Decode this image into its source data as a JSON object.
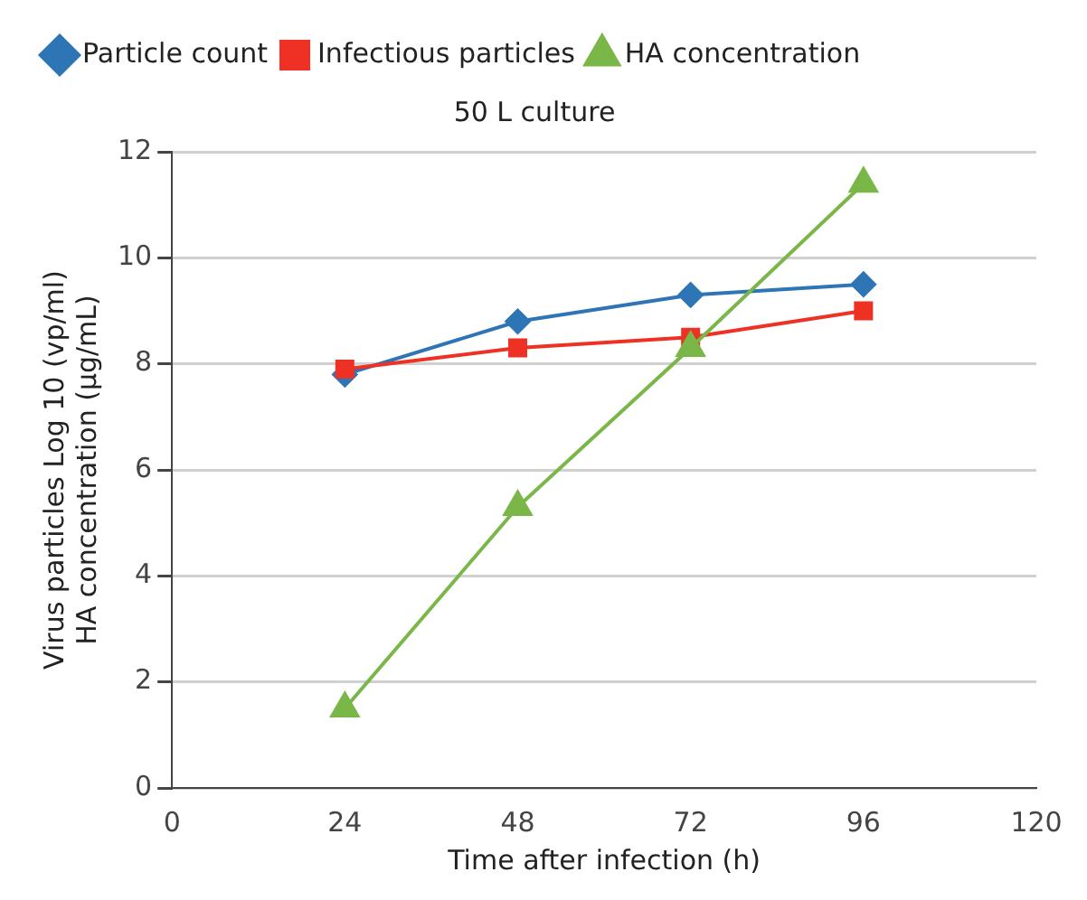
{
  "chart_data": {
    "type": "line",
    "title": "50 L culture",
    "xlabel": "Time after infection (h)",
    "ylabel": [
      "Virus particles Log 10 (vp/ml)",
      "HA concentration (µg/mL)"
    ],
    "x": [
      24,
      48,
      72,
      96
    ],
    "series": [
      {
        "name": "Particle count",
        "color": "#2e75b6",
        "marker": "diamond",
        "values": [
          7.8,
          8.8,
          9.3,
          9.5
        ]
      },
      {
        "name": "Infectious particles",
        "color": "#ee3124",
        "marker": "square",
        "values": [
          7.9,
          8.3,
          8.5,
          9.0
        ]
      },
      {
        "name": "HA concentration",
        "color": "#7ab648",
        "marker": "triangle",
        "values": [
          1.5,
          5.3,
          8.3,
          11.4
        ]
      }
    ],
    "xlim": [
      0,
      120
    ],
    "xticks": [
      0,
      24,
      48,
      72,
      96,
      120
    ],
    "ylim": [
      0,
      12
    ],
    "yticks": [
      0,
      2,
      4,
      6,
      8,
      10,
      12
    ],
    "grid": "y",
    "legend": "top left",
    "line_style": "solid"
  }
}
